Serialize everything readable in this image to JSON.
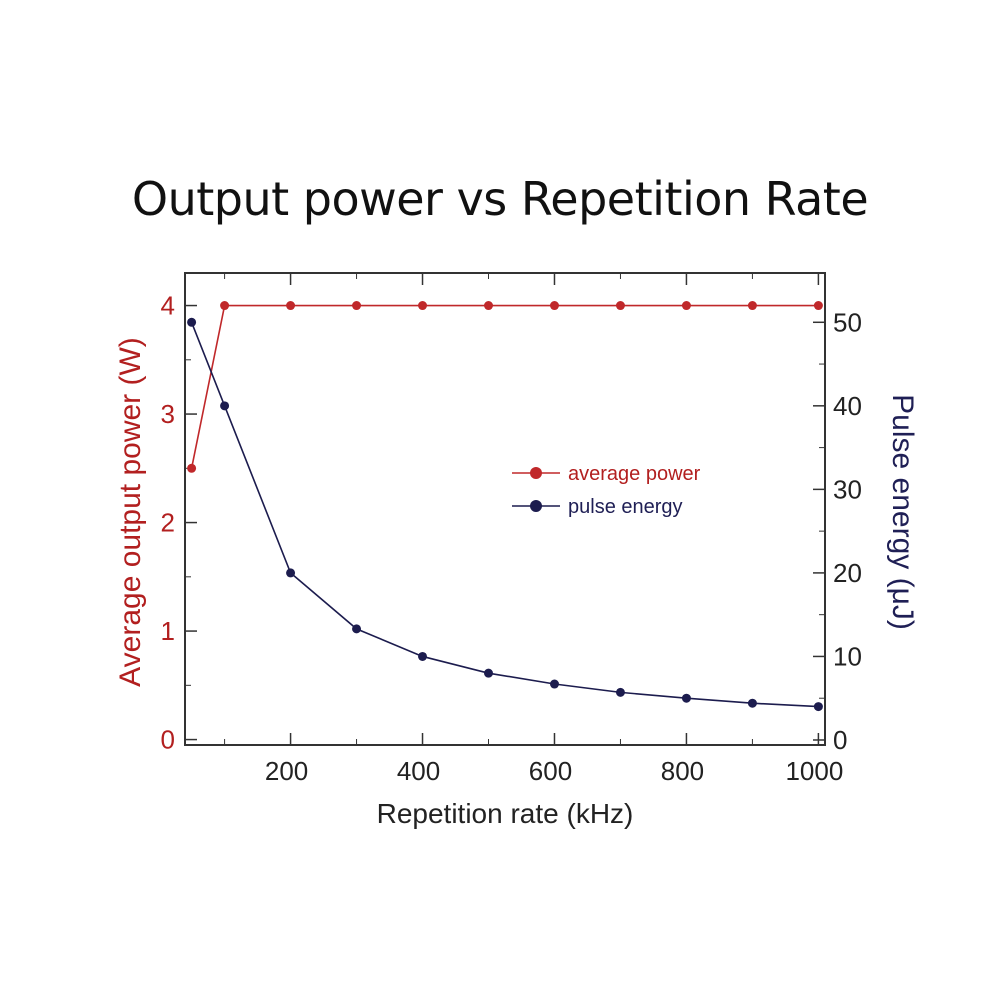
{
  "colors": {
    "power": "#c0282a",
    "energy": "#1c1c4e",
    "frame": "#333333"
  },
  "chart_data": {
    "type": "line",
    "title": "Output power vs Repetition Rate",
    "xlabel": "Repetition rate (kHz)",
    "ylabel_left": "Average output power (W)",
    "ylabel_right": "Pulse energy (μJ)",
    "xlim": [
      40,
      1010
    ],
    "ylim_left": [
      -0.05,
      4.3
    ],
    "ylim_right": [
      -0.6,
      55.9
    ],
    "x_ticks": [
      200,
      400,
      600,
      800,
      1000
    ],
    "y_left_ticks": [
      0,
      1,
      2,
      3,
      4
    ],
    "y_right_ticks": [
      0,
      10,
      20,
      30,
      40,
      50
    ],
    "legend_position": "center-right",
    "series": [
      {
        "name": "average power",
        "axis": "left",
        "x": [
          50,
          100,
          200,
          300,
          400,
          500,
          600,
          700,
          800,
          900,
          1000
        ],
        "values": [
          2.5,
          4.0,
          4.0,
          4.0,
          4.0,
          4.0,
          4.0,
          4.0,
          4.0,
          4.0,
          4.0
        ]
      },
      {
        "name": "pulse energy",
        "axis": "right",
        "x": [
          50,
          100,
          200,
          300,
          400,
          500,
          600,
          700,
          800,
          900,
          1000
        ],
        "values": [
          50,
          40,
          20,
          13.3,
          10,
          8,
          6.7,
          5.7,
          5,
          4.4,
          4
        ]
      }
    ]
  }
}
